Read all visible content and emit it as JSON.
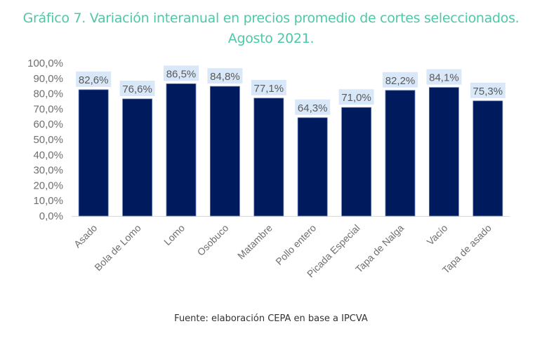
{
  "chart_data": {
    "type": "bar",
    "title": "Gráfico 7. Variación interanual en precios promedio de cortes seleccionados.",
    "subtitle": "Agosto 2021.",
    "xlabel": "",
    "ylabel": "",
    "categories": [
      "Asado",
      "Bola de Lomo",
      "Lomo",
      "Osobuco",
      "Matambre",
      "Pollo entero",
      "Picada Especial",
      "Tapa de Nalga",
      "Vacío",
      "Tapa de asado"
    ],
    "values": [
      82.6,
      76.6,
      86.5,
      84.8,
      77.1,
      64.3,
      71.0,
      82.2,
      84.1,
      75.3
    ],
    "data_labels": [
      "82,6%",
      "76,6%",
      "86,5%",
      "84,8%",
      "77,1%",
      "64,3%",
      "71,0%",
      "82,2%",
      "84,1%",
      "75,3%"
    ],
    "ylim": [
      0,
      100
    ],
    "yticks": [
      0,
      10,
      20,
      30,
      40,
      50,
      60,
      70,
      80,
      90,
      100
    ],
    "ytick_labels": [
      "0,0%",
      "10,0%",
      "20,0%",
      "30,0%",
      "40,0%",
      "50,0%",
      "60,0%",
      "70,0%",
      "80,0%",
      "90,0%",
      "100,0%"
    ],
    "grid": false,
    "legend": "none",
    "colors": {
      "bar": "#001a5e",
      "bar_edge": "#5f79b3",
      "label_bg": "#d9e8f8",
      "title": "#4fc7a6"
    },
    "source": "Fuente: elaboración CEPA en base a IPCVA"
  }
}
